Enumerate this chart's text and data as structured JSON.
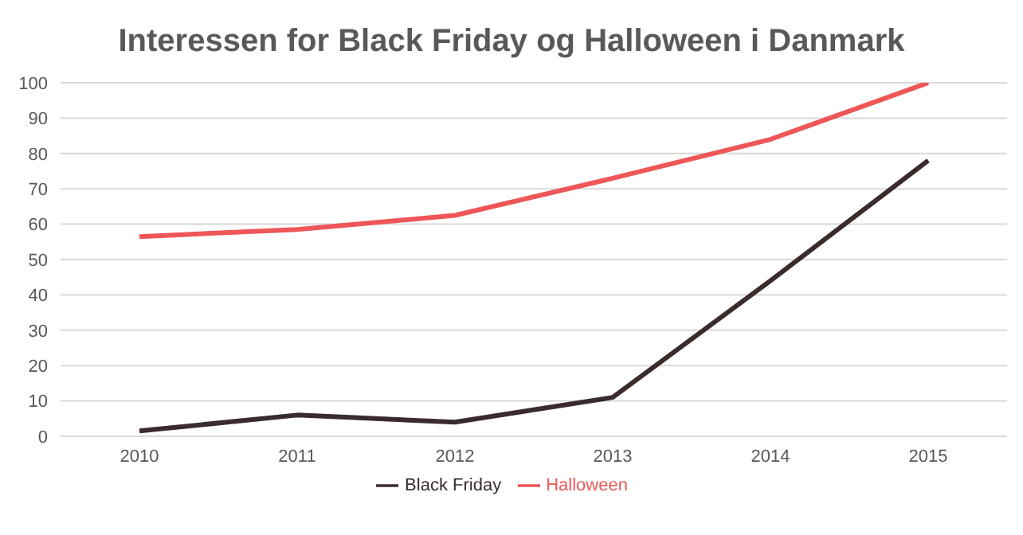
{
  "chart_data": {
    "type": "line",
    "title": "Interessen for Black Friday og Halloween i Danmark",
    "categories": [
      "2010",
      "2011",
      "2012",
      "2013",
      "2014",
      "2015"
    ],
    "series": [
      {
        "name": "Black Friday",
        "color": "#3a2c2c",
        "values": [
          1.5,
          6,
          4,
          11,
          44,
          78
        ]
      },
      {
        "name": "Halloween",
        "color": "#ee5658",
        "values": [
          56.5,
          58.5,
          62.5,
          73,
          84,
          100
        ]
      }
    ],
    "ylim": [
      0,
      100
    ],
    "yticks": [
      0,
      10,
      20,
      30,
      40,
      50,
      60,
      70,
      80,
      90,
      100
    ],
    "grid": "y",
    "legend": "bottom",
    "marker": "none",
    "line_style": "solid"
  }
}
